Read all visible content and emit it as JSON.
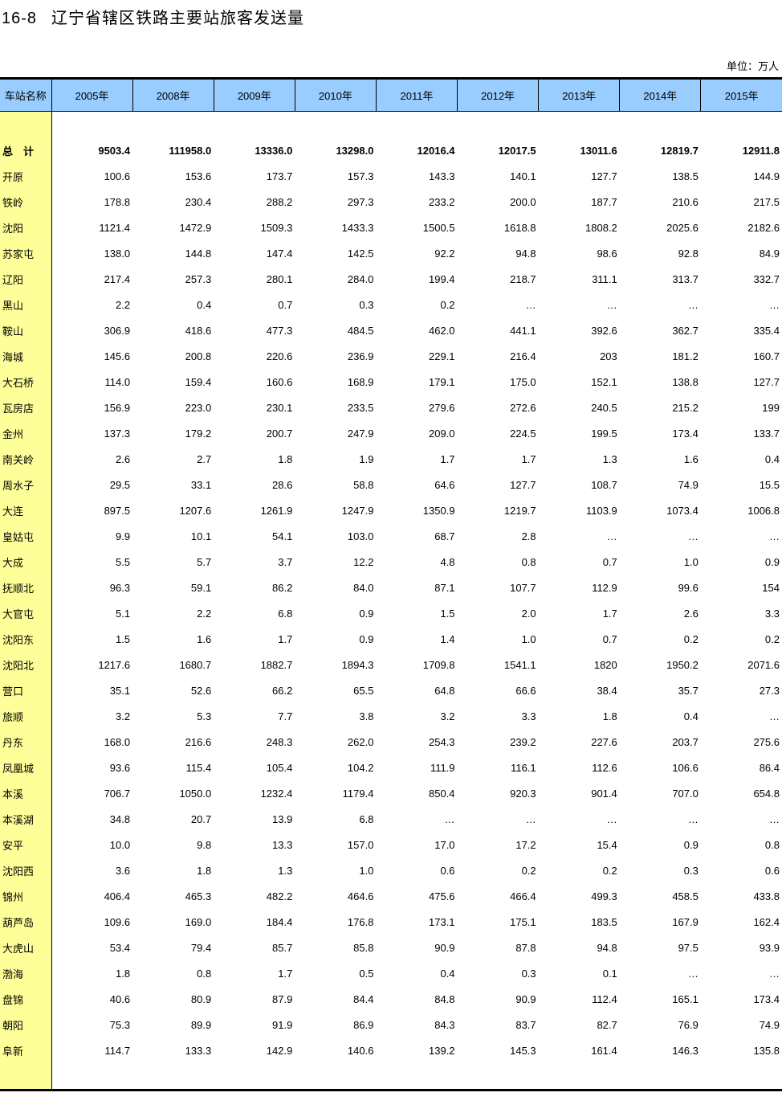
{
  "title": {
    "number": "16-8",
    "text": "辽宁省辖区铁路主要站旅客发送量"
  },
  "unit": "单位：万人",
  "table": {
    "headers": [
      "车站名称",
      "2005年",
      "2008年",
      "2009年",
      "2010年",
      "2011年",
      "2012年",
      "2013年",
      "2014年",
      "2015年"
    ],
    "total": {
      "name": "总　计",
      "values": [
        "9503.4",
        "111958.0",
        "13336.0",
        "13298.0",
        "12016.4",
        "12017.5",
        "13011.6",
        "12819.7",
        "12911.8"
      ]
    },
    "rows": [
      {
        "name": "开原",
        "values": [
          "100.6",
          "153.6",
          "173.7",
          "157.3",
          "143.3",
          "140.1",
          "127.7",
          "138.5",
          "144.9"
        ]
      },
      {
        "name": "铁岭",
        "values": [
          "178.8",
          "230.4",
          "288.2",
          "297.3",
          "233.2",
          "200.0",
          "187.7",
          "210.6",
          "217.5"
        ]
      },
      {
        "name": "沈阳",
        "values": [
          "1121.4",
          "1472.9",
          "1509.3",
          "1433.3",
          "1500.5",
          "1618.8",
          "1808.2",
          "2025.6",
          "2182.6"
        ]
      },
      {
        "name": "苏家屯",
        "values": [
          "138.0",
          "144.8",
          "147.4",
          "142.5",
          "92.2",
          "94.8",
          "98.6",
          "92.8",
          "84.9"
        ]
      },
      {
        "name": "辽阳",
        "values": [
          "217.4",
          "257.3",
          "280.1",
          "284.0",
          "199.4",
          "218.7",
          "311.1",
          "313.7",
          "332.7"
        ]
      },
      {
        "name": "黑山",
        "values": [
          "2.2",
          "0.4",
          "0.7",
          "0.3",
          "0.2",
          "…",
          "…",
          "…",
          "…"
        ]
      },
      {
        "name": "鞍山",
        "values": [
          "306.9",
          "418.6",
          "477.3",
          "484.5",
          "462.0",
          "441.1",
          "392.6",
          "362.7",
          "335.4"
        ]
      },
      {
        "name": "海城",
        "values": [
          "145.6",
          "200.8",
          "220.6",
          "236.9",
          "229.1",
          "216.4",
          "203",
          "181.2",
          "160.7"
        ]
      },
      {
        "name": "大石桥",
        "values": [
          "114.0",
          "159.4",
          "160.6",
          "168.9",
          "179.1",
          "175.0",
          "152.1",
          "138.8",
          "127.7"
        ]
      },
      {
        "name": "瓦房店",
        "values": [
          "156.9",
          "223.0",
          "230.1",
          "233.5",
          "279.6",
          "272.6",
          "240.5",
          "215.2",
          "199"
        ]
      },
      {
        "name": "金州",
        "values": [
          "137.3",
          "179.2",
          "200.7",
          "247.9",
          "209.0",
          "224.5",
          "199.5",
          "173.4",
          "133.7"
        ]
      },
      {
        "name": "南关岭",
        "values": [
          "2.6",
          "2.7",
          "1.8",
          "1.9",
          "1.7",
          "1.7",
          "1.3",
          "1.6",
          "0.4"
        ]
      },
      {
        "name": "周水子",
        "values": [
          "29.5",
          "33.1",
          "28.6",
          "58.8",
          "64.6",
          "127.7",
          "108.7",
          "74.9",
          "15.5"
        ]
      },
      {
        "name": "大连",
        "values": [
          "897.5",
          "1207.6",
          "1261.9",
          "1247.9",
          "1350.9",
          "1219.7",
          "1103.9",
          "1073.4",
          "1006.8"
        ]
      },
      {
        "name": "皇姑屯",
        "values": [
          "9.9",
          "10.1",
          "54.1",
          "103.0",
          "68.7",
          "2.8",
          "…",
          "…",
          "…"
        ]
      },
      {
        "name": "大成",
        "values": [
          "5.5",
          "5.7",
          "3.7",
          "12.2",
          "4.8",
          "0.8",
          "0.7",
          "1.0",
          "0.9"
        ]
      },
      {
        "name": "抚顺北",
        "values": [
          "96.3",
          "59.1",
          "86.2",
          "84.0",
          "87.1",
          "107.7",
          "112.9",
          "99.6",
          "154"
        ]
      },
      {
        "name": "大官屯",
        "values": [
          "5.1",
          "2.2",
          "6.8",
          "0.9",
          "1.5",
          "2.0",
          "1.7",
          "2.6",
          "3.3"
        ]
      },
      {
        "name": "沈阳东",
        "values": [
          "1.5",
          "1.6",
          "1.7",
          "0.9",
          "1.4",
          "1.0",
          "0.7",
          "0.2",
          "0.2"
        ]
      },
      {
        "name": "沈阳北",
        "values": [
          "1217.6",
          "1680.7",
          "1882.7",
          "1894.3",
          "1709.8",
          "1541.1",
          "1820",
          "1950.2",
          "2071.6"
        ]
      },
      {
        "name": "营口",
        "values": [
          "35.1",
          "52.6",
          "66.2",
          "65.5",
          "64.8",
          "66.6",
          "38.4",
          "35.7",
          "27.3"
        ]
      },
      {
        "name": "旅顺",
        "values": [
          "3.2",
          "5.3",
          "7.7",
          "3.8",
          "3.2",
          "3.3",
          "1.8",
          "0.4",
          "…"
        ]
      },
      {
        "name": "丹东",
        "values": [
          "168.0",
          "216.6",
          "248.3",
          "262.0",
          "254.3",
          "239.2",
          "227.6",
          "203.7",
          "275.6"
        ]
      },
      {
        "name": "凤凰城",
        "values": [
          "93.6",
          "115.4",
          "105.4",
          "104.2",
          "111.9",
          "116.1",
          "112.6",
          "106.6",
          "86.4"
        ]
      },
      {
        "name": "本溪",
        "values": [
          "706.7",
          "1050.0",
          "1232.4",
          "1179.4",
          "850.4",
          "920.3",
          "901.4",
          "707.0",
          "654.8"
        ]
      },
      {
        "name": "本溪湖",
        "values": [
          "34.8",
          "20.7",
          "13.9",
          "6.8",
          "…",
          "…",
          "…",
          "…",
          "…"
        ]
      },
      {
        "name": "安平",
        "values": [
          "10.0",
          "9.8",
          "13.3",
          "157.0",
          "17.0",
          "17.2",
          "15.4",
          "0.9",
          "0.8"
        ]
      },
      {
        "name": "沈阳西",
        "values": [
          "3.6",
          "1.8",
          "1.3",
          "1.0",
          "0.6",
          "0.2",
          "0.2",
          "0.3",
          "0.6"
        ]
      },
      {
        "name": "锦州",
        "values": [
          "406.4",
          "465.3",
          "482.2",
          "464.6",
          "475.6",
          "466.4",
          "499.3",
          "458.5",
          "433.8"
        ]
      },
      {
        "name": "葫芦岛",
        "values": [
          "109.6",
          "169.0",
          "184.4",
          "176.8",
          "173.1",
          "175.1",
          "183.5",
          "167.9",
          "162.4"
        ]
      },
      {
        "name": "大虎山",
        "values": [
          "53.4",
          "79.4",
          "85.7",
          "85.8",
          "90.9",
          "87.8",
          "94.8",
          "97.5",
          "93.9"
        ]
      },
      {
        "name": "渤海",
        "values": [
          "1.8",
          "0.8",
          "1.7",
          "0.5",
          "0.4",
          "0.3",
          "0.1",
          "…",
          "…"
        ]
      },
      {
        "name": "盘锦",
        "values": [
          "40.6",
          "80.9",
          "87.9",
          "84.4",
          "84.8",
          "90.9",
          "112.4",
          "165.1",
          "173.4"
        ]
      },
      {
        "name": "朝阳",
        "values": [
          "75.3",
          "89.9",
          "91.9",
          "86.9",
          "84.3",
          "83.7",
          "82.7",
          "76.9",
          "74.9"
        ]
      },
      {
        "name": "阜新",
        "values": [
          "114.7",
          "133.3",
          "142.9",
          "140.6",
          "139.2",
          "145.3",
          "161.4",
          "146.3",
          "135.8"
        ]
      }
    ]
  },
  "colors": {
    "header_bg": "#99ccff",
    "name_col_bg": "#ffff99"
  }
}
